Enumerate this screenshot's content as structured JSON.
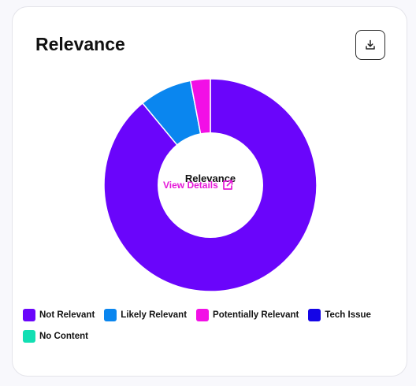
{
  "card": {
    "title": "Relevance",
    "download_icon": "download-icon"
  },
  "center": {
    "title": "Relevance",
    "link_label": "View Details",
    "link_icon": "external-link-icon"
  },
  "colors": {
    "link": "#e619d8",
    "card_border": "#e4e4ea"
  },
  "chart_data": {
    "type": "pie",
    "variant": "donut",
    "series": [
      {
        "name": "Not Relevant",
        "value": 89.0,
        "color": "#6a05fb"
      },
      {
        "name": "Likely Relevant",
        "value": 8.0,
        "color": "#0a86ef"
      },
      {
        "name": "Potentially Relevant",
        "value": 3.0,
        "color": "#f20fe6"
      },
      {
        "name": "Tech Issue",
        "value": 0,
        "color": "#1405e6"
      },
      {
        "name": "No Content",
        "value": 0,
        "color": "#12dfb3"
      }
    ],
    "start": "top, clockwise",
    "legend_position": "bottom"
  }
}
